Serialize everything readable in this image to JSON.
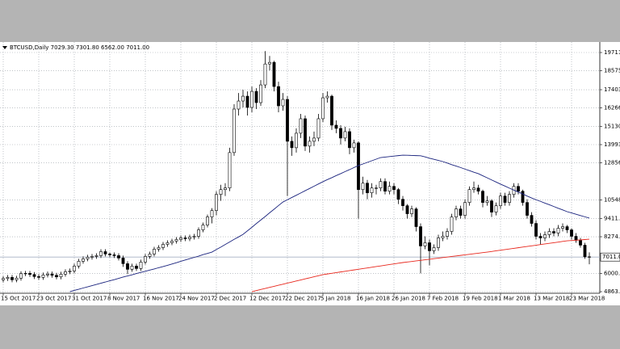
{
  "chart_data": {
    "type": "candlestick",
    "title": "BTCUSD,Daily 7029.30 7301.80 6562.00 7011.00",
    "categories": [
      "15 Oct 2017",
      null,
      null,
      null,
      null,
      null,
      null,
      null,
      "23 Oct 2017",
      null,
      null,
      null,
      null,
      null,
      null,
      null,
      "31 Oct 2017",
      null,
      null,
      null,
      null,
      null,
      null,
      null,
      "8 Nov 2017",
      null,
      null,
      null,
      null,
      null,
      null,
      null,
      "16 Nov 2017",
      null,
      null,
      null,
      null,
      null,
      null,
      null,
      "24 Nov 2017",
      null,
      null,
      null,
      null,
      null,
      null,
      null,
      "2 Dec 2017",
      null,
      null,
      null,
      null,
      null,
      null,
      null,
      "12 Dec 2017",
      null,
      null,
      null,
      null,
      null,
      null,
      null,
      "22 Dec 2017",
      null,
      null,
      null,
      null,
      null,
      null,
      null,
      "5 Jan 2018",
      null,
      null,
      null,
      null,
      null,
      null,
      null,
      "16 Jan 2018",
      null,
      null,
      null,
      null,
      null,
      null,
      null,
      "26 Jan 2018",
      null,
      null,
      null,
      null,
      null,
      null,
      null,
      "7 Feb 2018",
      null,
      null,
      null,
      null,
      null,
      null,
      null,
      "19 Feb 2018",
      null,
      null,
      null,
      null,
      null,
      null,
      null,
      "1 Mar 2018",
      null,
      null,
      null,
      null,
      null,
      null,
      null,
      "13 Mar 2018",
      null,
      null,
      null,
      null,
      null,
      null,
      null,
      "23 Mar 2018",
      null,
      null,
      null,
      null
    ],
    "candles": [
      [
        5600,
        5830,
        5450,
        5680
      ],
      [
        5680,
        5900,
        5530,
        5750
      ],
      [
        5750,
        5900,
        5450,
        5600
      ],
      [
        5600,
        5850,
        5450,
        5700
      ],
      [
        5700,
        6130,
        5550,
        5980
      ],
      [
        5980,
        6150,
        5830,
        6000
      ],
      [
        6000,
        6150,
        5780,
        5930
      ],
      [
        5930,
        6080,
        5650,
        5800
      ],
      [
        5800,
        5950,
        5600,
        5750
      ],
      [
        5750,
        6050,
        5600,
        5900
      ],
      [
        5900,
        6110,
        5750,
        5960
      ],
      [
        5960,
        6110,
        5730,
        5880
      ],
      [
        5880,
        6030,
        5630,
        5780
      ],
      [
        5780,
        6100,
        5630,
        5950
      ],
      [
        5950,
        6250,
        5800,
        6100
      ],
      [
        6100,
        6300,
        5950,
        6150
      ],
      [
        6150,
        6600,
        6000,
        6450
      ],
      [
        6450,
        6900,
        6300,
        6750
      ],
      [
        6750,
        7050,
        6600,
        6900
      ],
      [
        6900,
        7150,
        6750,
        7000
      ],
      [
        7000,
        7200,
        6850,
        7050
      ],
      [
        7050,
        7250,
        6900,
        7100
      ],
      [
        7100,
        7500,
        6950,
        7350
      ],
      [
        7350,
        7500,
        7050,
        7200
      ],
      [
        7200,
        7300,
        7000,
        7150
      ],
      [
        7150,
        7300,
        6950,
        7100
      ],
      [
        7100,
        7250,
        6800,
        6950
      ],
      [
        6950,
        7100,
        6400,
        6600
      ],
      [
        6600,
        6750,
        5950,
        6250
      ],
      [
        6250,
        6600,
        6100,
        6450
      ],
      [
        6450,
        6600,
        6150,
        6300
      ],
      [
        6300,
        6850,
        6150,
        6700
      ],
      [
        6700,
        7200,
        6550,
        7050
      ],
      [
        7050,
        7350,
        6900,
        7200
      ],
      [
        7200,
        7650,
        7050,
        7500
      ],
      [
        7500,
        7750,
        7350,
        7600
      ],
      [
        7600,
        7950,
        7450,
        7800
      ],
      [
        7800,
        8050,
        7650,
        7900
      ],
      [
        7900,
        8150,
        7750,
        8000
      ],
      [
        8000,
        8250,
        7850,
        8100
      ],
      [
        8100,
        8350,
        7950,
        8200
      ],
      [
        8200,
        8350,
        8000,
        8150
      ],
      [
        8150,
        8400,
        8000,
        8250
      ],
      [
        8250,
        8450,
        8100,
        8300
      ],
      [
        8300,
        8850,
        8150,
        8700
      ],
      [
        8700,
        9150,
        8550,
        9000
      ],
      [
        9000,
        9650,
        8850,
        9500
      ],
      [
        9500,
        10050,
        9100,
        9900
      ],
      [
        9900,
        11100,
        9600,
        10900
      ],
      [
        10900,
        11500,
        10500,
        11200
      ],
      [
        11200,
        11600,
        10800,
        11300
      ],
      [
        11300,
        13800,
        11100,
        13500
      ],
      [
        13500,
        16500,
        13300,
        16200
      ],
      [
        16200,
        17200,
        15800,
        16700
      ],
      [
        16700,
        17400,
        16300,
        17000
      ],
      [
        17000,
        17300,
        15800,
        16300
      ],
      [
        16300,
        17600,
        16000,
        17300
      ],
      [
        17300,
        17500,
        16200,
        16600
      ],
      [
        16600,
        18000,
        16400,
        17700
      ],
      [
        17700,
        19800,
        17500,
        19000
      ],
      [
        19000,
        19500,
        18600,
        19100
      ],
      [
        19100,
        19200,
        17300,
        17600
      ],
      [
        17600,
        17900,
        16000,
        16400
      ],
      [
        16400,
        17200,
        16100,
        16800
      ],
      [
        16800,
        17000,
        10800,
        14200
      ],
      [
        14200,
        14500,
        13300,
        13800
      ],
      [
        13800,
        15000,
        13500,
        14700
      ],
      [
        14700,
        15900,
        14400,
        15600
      ],
      [
        15600,
        15800,
        13600,
        13900
      ],
      [
        13900,
        14500,
        13500,
        14200
      ],
      [
        14200,
        14800,
        13900,
        14400
      ],
      [
        14400,
        15900,
        14200,
        15600
      ],
      [
        15600,
        17200,
        15400,
        16900
      ],
      [
        16900,
        17300,
        16600,
        17000
      ],
      [
        17000,
        17100,
        14900,
        15200
      ],
      [
        15200,
        15500,
        14700,
        15000
      ],
      [
        15000,
        15200,
        14000,
        14400
      ],
      [
        14400,
        15100,
        14200,
        14800
      ],
      [
        14800,
        15000,
        13400,
        13800
      ],
      [
        13800,
        14300,
        13500,
        14100
      ],
      [
        14100,
        14200,
        9400,
        11200
      ],
      [
        11200,
        12000,
        10900,
        11600
      ],
      [
        11600,
        11800,
        10600,
        11000
      ],
      [
        11000,
        11600,
        10700,
        11300
      ],
      [
        11300,
        11500,
        10900,
        11300
      ],
      [
        11300,
        11900,
        11100,
        11700
      ],
      [
        11700,
        11900,
        10900,
        11100
      ],
      [
        11100,
        11700,
        10900,
        11400
      ],
      [
        11400,
        11600,
        10900,
        11200
      ],
      [
        11200,
        11300,
        10300,
        10600
      ],
      [
        10600,
        10800,
        9900,
        10200
      ],
      [
        10200,
        10300,
        9400,
        9700
      ],
      [
        9700,
        10200,
        9500,
        10000
      ],
      [
        10000,
        10100,
        8600,
        8900
      ],
      [
        8900,
        9100,
        6000,
        7700
      ],
      [
        7700,
        8300,
        7500,
        7900
      ],
      [
        7900,
        8100,
        6500,
        7400
      ],
      [
        7400,
        7800,
        7200,
        7600
      ],
      [
        7600,
        8400,
        7400,
        8200
      ],
      [
        8200,
        8600,
        8000,
        8300
      ],
      [
        8300,
        8800,
        8100,
        8600
      ],
      [
        8600,
        9700,
        8400,
        9500
      ],
      [
        9500,
        10200,
        9300,
        10000
      ],
      [
        10000,
        10200,
        9400,
        9600
      ],
      [
        9600,
        10600,
        9400,
        10400
      ],
      [
        10400,
        11400,
        10200,
        11200
      ],
      [
        11200,
        11700,
        11000,
        11300
      ],
      [
        11300,
        11500,
        10900,
        11100
      ],
      [
        11100,
        11200,
        10100,
        10400
      ],
      [
        10400,
        10800,
        10200,
        10500
      ],
      [
        10500,
        10600,
        9500,
        9800
      ],
      [
        9800,
        10400,
        9600,
        10200
      ],
      [
        10200,
        11000,
        10000,
        10800
      ],
      [
        10800,
        11000,
        10200,
        10400
      ],
      [
        10400,
        11100,
        10200,
        10900
      ],
      [
        10900,
        11600,
        10700,
        11400
      ],
      [
        11400,
        11600,
        10900,
        11100
      ],
      [
        11100,
        11200,
        10200,
        10400
      ],
      [
        10400,
        10600,
        9400,
        9600
      ],
      [
        9600,
        9800,
        8900,
        9100
      ],
      [
        9100,
        9300,
        8100,
        8300
      ],
      [
        8300,
        8500,
        7800,
        8200
      ],
      [
        8200,
        8600,
        8000,
        8400
      ],
      [
        8400,
        8800,
        8200,
        8600
      ],
      [
        8600,
        8800,
        8300,
        8500
      ],
      [
        8500,
        9000,
        8300,
        8800
      ],
      [
        8800,
        9100,
        8600,
        8900
      ],
      [
        8900,
        9000,
        8500,
        8700
      ],
      [
        8700,
        8800,
        8100,
        8300
      ],
      [
        8300,
        8500,
        7900,
        8050
      ],
      [
        8050,
        8200,
        7600,
        7750
      ],
      [
        7750,
        7900,
        6900,
        7029.3
      ],
      [
        7029.3,
        7301.8,
        6562,
        7011
      ]
    ],
    "up_color": "#ffffff",
    "down_color": "#000000",
    "outline_color": "#000000",
    "series": [
      {
        "color": "#1a237e",
        "values": [
          null,
          null,
          null,
          null,
          null,
          null,
          null,
          null,
          null,
          null,
          null,
          null,
          null,
          null,
          null,
          4864,
          4940,
          5010,
          5090,
          5160,
          5240,
          5310,
          5390,
          5460,
          5540,
          5610,
          5690,
          5770,
          5840,
          5910,
          5990,
          6060,
          6130,
          6200,
          6270,
          6350,
          6420,
          6500,
          6580,
          6660,
          6750,
          6830,
          6910,
          6990,
          7070,
          7160,
          7240,
          7320,
          7480,
          7630,
          7790,
          7950,
          8110,
          8260,
          8420,
          8640,
          8860,
          9090,
          9310,
          9530,
          9760,
          9980,
          10210,
          10430,
          10570,
          10710,
          10850,
          10990,
          11130,
          11270,
          11410,
          11550,
          11690,
          11820,
          11940,
          12070,
          12190,
          12320,
          12440,
          12570,
          12690,
          12790,
          12890,
          12990,
          13090,
          13190,
          13220,
          13250,
          13280,
          13310,
          13340,
          13330,
          13320,
          13310,
          13300,
          13230,
          13150,
          13080,
          13010,
          12940,
          12850,
          12750,
          12660,
          12570,
          12470,
          12380,
          12280,
          12190,
          12060,
          11930,
          11800,
          11670,
          11540,
          11420,
          11290,
          11170,
          11050,
          10930,
          10800,
          10680,
          10570,
          10470,
          10360,
          10260,
          10150,
          10040,
          9940,
          9830,
          9750,
          9670,
          9590,
          9510,
          9430
        ]
      },
      {
        "color": "#e8281e",
        "values": [
          null,
          null,
          null,
          null,
          null,
          null,
          null,
          null,
          null,
          null,
          null,
          null,
          null,
          null,
          null,
          null,
          null,
          null,
          null,
          null,
          null,
          null,
          null,
          null,
          null,
          null,
          null,
          null,
          null,
          null,
          null,
          null,
          null,
          null,
          null,
          null,
          null,
          null,
          null,
          null,
          null,
          null,
          null,
          null,
          null,
          null,
          null,
          null,
          null,
          null,
          null,
          null,
          null,
          null,
          null,
          null,
          4864,
          4930,
          4996,
          5062,
          5128,
          5194,
          5260,
          5326,
          5392,
          5458,
          5524,
          5590,
          5656,
          5722,
          5788,
          5854,
          5920,
          5962,
          6003,
          6045,
          6087,
          6128,
          6170,
          6212,
          6253,
          6295,
          6337,
          6378,
          6420,
          6462,
          6503,
          6545,
          6587,
          6628,
          6670,
          6704,
          6738,
          6773,
          6807,
          6841,
          6875,
          6910,
          6944,
          6978,
          7012,
          7047,
          7081,
          7115,
          7149,
          7183,
          7218,
          7252,
          7286,
          7320,
          7359,
          7398,
          7437,
          7476,
          7514,
          7553,
          7592,
          7631,
          7670,
          7709,
          7748,
          7787,
          7826,
          7864,
          7903,
          7942,
          7981,
          8020,
          8040,
          8060,
          8080,
          8100,
          8120
        ]
      }
    ],
    "ylim": [
      4764,
      20213
    ],
    "yticks": [
      {
        "value": 19711,
        "label": "19711."
      },
      {
        "value": 18575,
        "label": "18575."
      },
      {
        "value": 17403,
        "label": "17403."
      },
      {
        "value": 16266,
        "label": "16266."
      },
      {
        "value": 15130,
        "label": "15130."
      },
      {
        "value": 13993,
        "label": "13993."
      },
      {
        "value": 12856,
        "label": "12856."
      },
      {
        "value": 10548,
        "label": "10548."
      },
      9411.3,
      {
        "value": 8274,
        "label": "8274."
      },
      6000.8,
      4863.9
    ],
    "current_price": {
      "value": 7011,
      "label": "7011.00"
    },
    "grid": true
  }
}
